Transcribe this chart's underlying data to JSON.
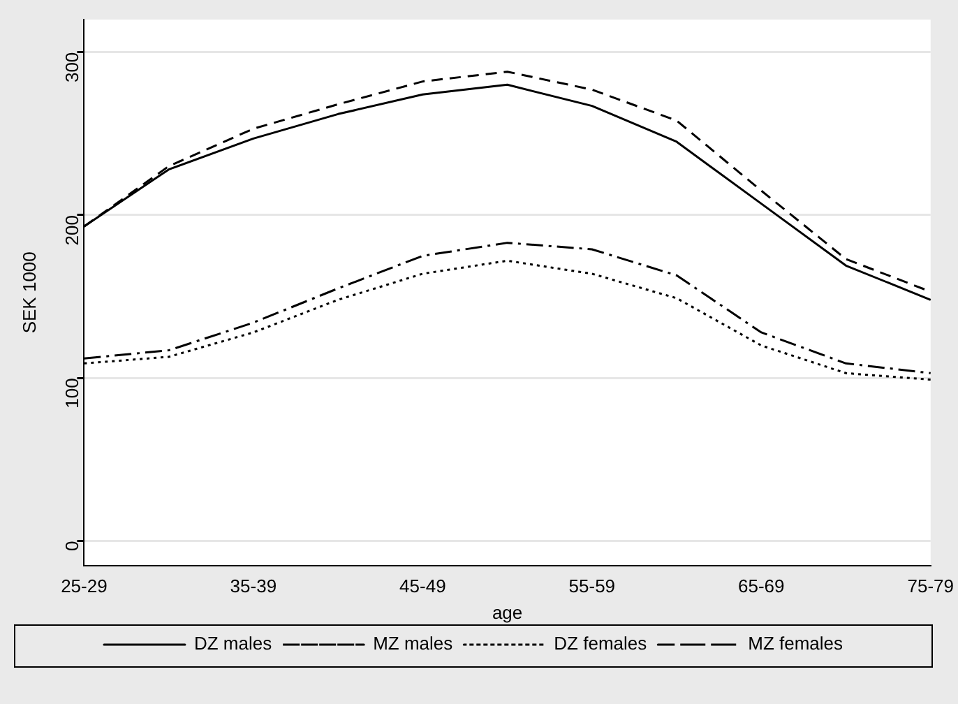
{
  "chart_data": {
    "type": "line",
    "xlabel": "age",
    "ylabel": "SEK 1000",
    "categories": [
      "25-29",
      null,
      "35-39",
      null,
      "45-49",
      null,
      "55-59",
      null,
      "65-69",
      null,
      "75-79"
    ],
    "ylim": [
      -15,
      320
    ],
    "yticks": [
      0,
      100,
      200,
      300
    ],
    "grid": "y",
    "legend": "bottom",
    "marker": "none",
    "series": [
      {
        "name": "DZ males",
        "color": "#000000",
        "line_style": "solid",
        "values": [
          193,
          228,
          247,
          262,
          274,
          280,
          267,
          245,
          207,
          169,
          148
        ]
      },
      {
        "name": "MZ males",
        "color": "#000000",
        "line_style": "dashed",
        "values": [
          193,
          230,
          253,
          268,
          282,
          288,
          277,
          258,
          215,
          173,
          153
        ]
      },
      {
        "name": "DZ females",
        "color": "#000000",
        "line_style": "dotted",
        "values": [
          109,
          113,
          128,
          148,
          164,
          172,
          164,
          149,
          120,
          103,
          99
        ]
      },
      {
        "name": "MZ females",
        "color": "#000000",
        "line_style": "dashdot",
        "values": [
          112,
          117,
          134,
          155,
          175,
          183,
          179,
          163,
          128,
          109,
          103
        ]
      }
    ]
  }
}
